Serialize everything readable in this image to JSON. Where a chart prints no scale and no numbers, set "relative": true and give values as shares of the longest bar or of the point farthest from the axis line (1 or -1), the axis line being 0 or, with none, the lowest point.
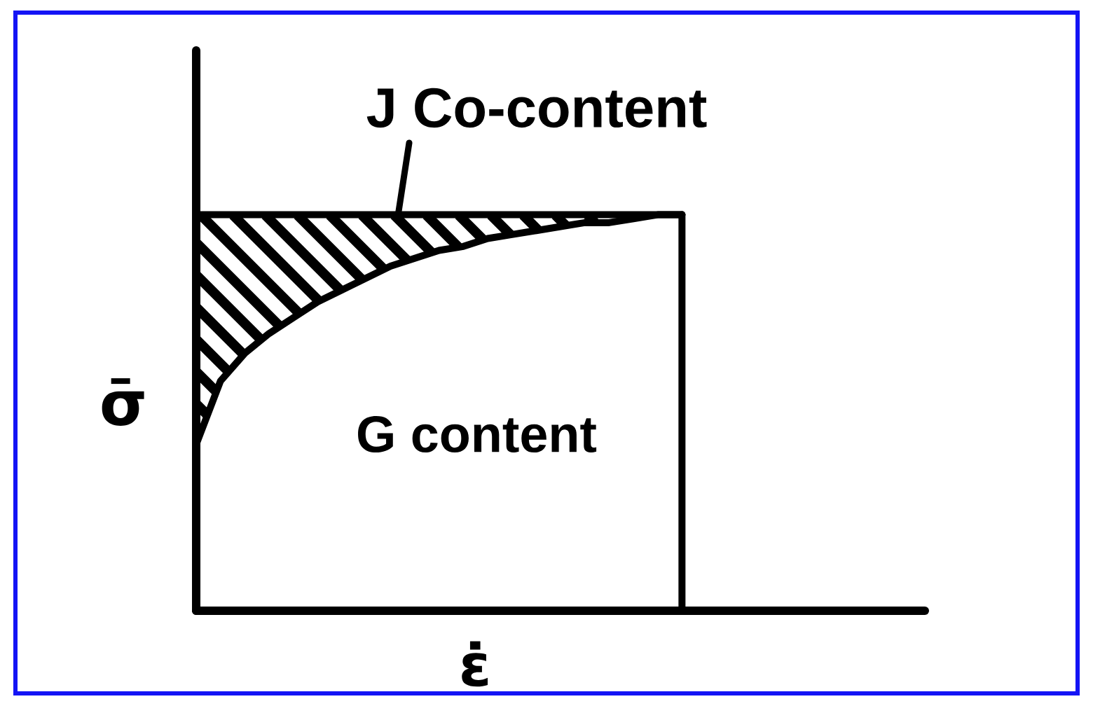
{
  "chart_data": {
    "type": "line",
    "xlabel": "ε̇",
    "ylabel": "σ̄",
    "annotations": [
      "J Co-content",
      "G content"
    ],
    "categories": [
      null,
      null,
      null,
      null,
      null,
      null,
      null,
      null,
      null,
      null,
      null,
      null,
      null,
      null,
      null,
      null,
      null,
      null,
      null,
      null,
      null
    ],
    "relative": true,
    "tick_labels": false,
    "series": [
      {
        "color": "#000000",
        "values": [
          1,
          1,
          1,
          1,
          1,
          1,
          1,
          1,
          1,
          1,
          1,
          1,
          1,
          1,
          1,
          1,
          1,
          1,
          1,
          1,
          1
        ]
      },
      {
        "color": "#000000",
        "values": [
          0.42,
          0.58,
          0.65,
          0.7,
          0.74,
          0.78,
          0.81,
          0.84,
          0.87,
          0.89,
          0.91,
          0.92,
          0.94,
          0.95,
          0.96,
          0.97,
          0.98,
          0.98,
          0.99,
          1.0,
          1.0
        ]
      }
    ]
  }
}
